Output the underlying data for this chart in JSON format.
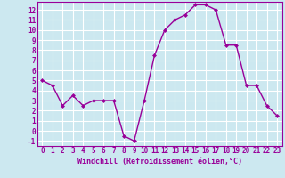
{
  "x": [
    0,
    1,
    2,
    3,
    4,
    5,
    6,
    7,
    8,
    9,
    10,
    11,
    12,
    13,
    14,
    15,
    16,
    17,
    18,
    19,
    20,
    21,
    22,
    23
  ],
  "y": [
    5,
    4.5,
    2.5,
    3.5,
    2.5,
    3,
    3,
    3,
    -0.5,
    -1,
    3,
    7.5,
    10,
    11,
    11.5,
    12.5,
    12.5,
    12,
    8.5,
    8.5,
    4.5,
    4.5,
    2.5,
    1.5
  ],
  "line_color": "#990099",
  "marker": "D",
  "marker_size": 2.0,
  "bg_color": "#cce8f0",
  "grid_color": "#ffffff",
  "xlabel": "Windchill (Refroidissement éolien,°C)",
  "xlabel_color": "#990099",
  "tick_color": "#990099",
  "ylim": [
    -1.5,
    12.8
  ],
  "xlim": [
    -0.5,
    23.5
  ],
  "yticks": [
    -1,
    0,
    1,
    2,
    3,
    4,
    5,
    6,
    7,
    8,
    9,
    10,
    11,
    12
  ],
  "xticks": [
    0,
    1,
    2,
    3,
    4,
    5,
    6,
    7,
    8,
    9,
    10,
    11,
    12,
    13,
    14,
    15,
    16,
    17,
    18,
    19,
    20,
    21,
    22,
    23
  ],
  "spine_color": "#990099",
  "linewidth": 1.0,
  "tick_fontsize": 5.5,
  "xlabel_fontsize": 6.0
}
